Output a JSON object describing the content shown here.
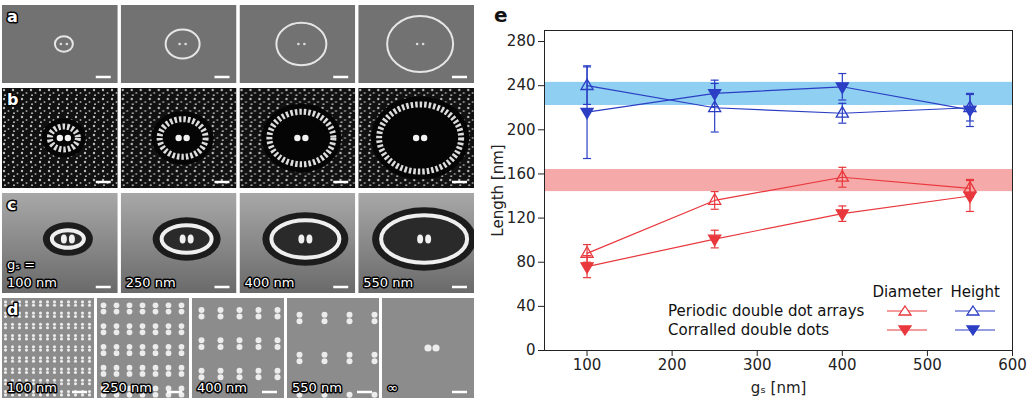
{
  "chart_data": {
    "type": "scatter",
    "panel_label": "e",
    "xlabel": "gₛ [nm]",
    "ylabel": "Length [nm]",
    "x": [
      100,
      250,
      400,
      550
    ],
    "xlim": [
      50,
      600
    ],
    "xticks": [
      100,
      200,
      300,
      400,
      500,
      600
    ],
    "ylim": [
      0,
      290
    ],
    "yticks": [
      0,
      40,
      80,
      120,
      160,
      200,
      240,
      280
    ],
    "legend": "bottom-right",
    "legend_columns": [
      "Diameter",
      "Height"
    ],
    "bands": [
      {
        "lo": 222,
        "hi": 243,
        "color": "#8ecff2"
      },
      {
        "lo": 144,
        "hi": 164,
        "color": "#f6a9a9"
      }
    ],
    "series": [
      {
        "row": "Periodic double dot arrays",
        "column": "Diameter",
        "color": "#e8383d",
        "marker": "triangle-open",
        "values": [
          88,
          136,
          157,
          147
        ],
        "errors": [
          8,
          8,
          9,
          8
        ]
      },
      {
        "row": "Periodic double dot arrays",
        "column": "Height",
        "color": "#2b3ec4",
        "marker": "triangle-open",
        "values": [
          240,
          220,
          215,
          220
        ],
        "errors": [
          17,
          22,
          9,
          12
        ]
      },
      {
        "row": "Corralled double dots",
        "column": "Diameter",
        "color": "#e8383d",
        "marker": "triangle-down-filled",
        "values": [
          76,
          101,
          124,
          140
        ],
        "errors": [
          10,
          8,
          7,
          14
        ]
      },
      {
        "row": "Corralled double dots",
        "column": "Height",
        "color": "#2b3ec4",
        "marker": "triangle-down-filled",
        "values": [
          216,
          233,
          239,
          218
        ],
        "errors": [
          42,
          12,
          12,
          15
        ]
      }
    ]
  },
  "panels": [
    {
      "label": "a"
    },
    {
      "label": "b"
    },
    {
      "label": "c",
      "prefix": "gₛ =",
      "captions": [
        "100 nm",
        "250 nm",
        "400 nm",
        "550 nm"
      ]
    },
    {
      "label": "d",
      "captions": [
        "100 nm",
        "250 nm",
        "400 nm",
        "550 nm",
        "∞"
      ]
    }
  ]
}
